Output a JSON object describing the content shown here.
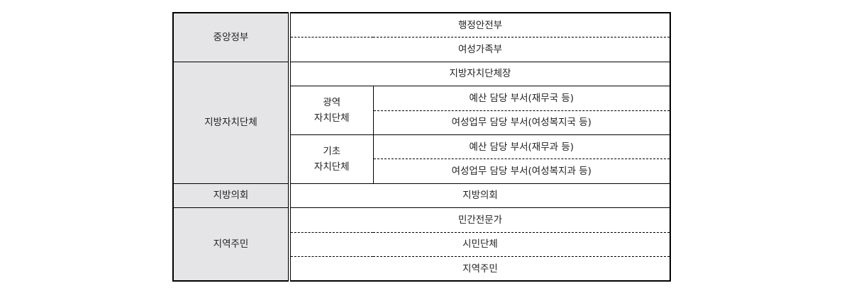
{
  "table": {
    "groups": [
      {
        "category": "중앙정부",
        "items": [
          "행정안전부",
          "여성가족부"
        ]
      },
      {
        "category": "지방자치단체",
        "head": "지방자치단체장",
        "subgroups": [
          {
            "label_line1": "광역",
            "label_line2": "자치단체",
            "items": [
              "예산 담당 부서(재무국 등)",
              "여성업무 담당 부서(여성복지국 등)"
            ]
          },
          {
            "label_line1": "기초",
            "label_line2": "자치단체",
            "items": [
              "예산 담당 부서(재무과 등)",
              "여성업무 담당 부서(여성복지과 등)"
            ]
          }
        ]
      },
      {
        "category": "지방의회",
        "items": [
          "지방의회"
        ]
      },
      {
        "category": "지역주민",
        "items": [
          "민간전문가",
          "시민단체",
          "지역주민"
        ]
      }
    ]
  }
}
